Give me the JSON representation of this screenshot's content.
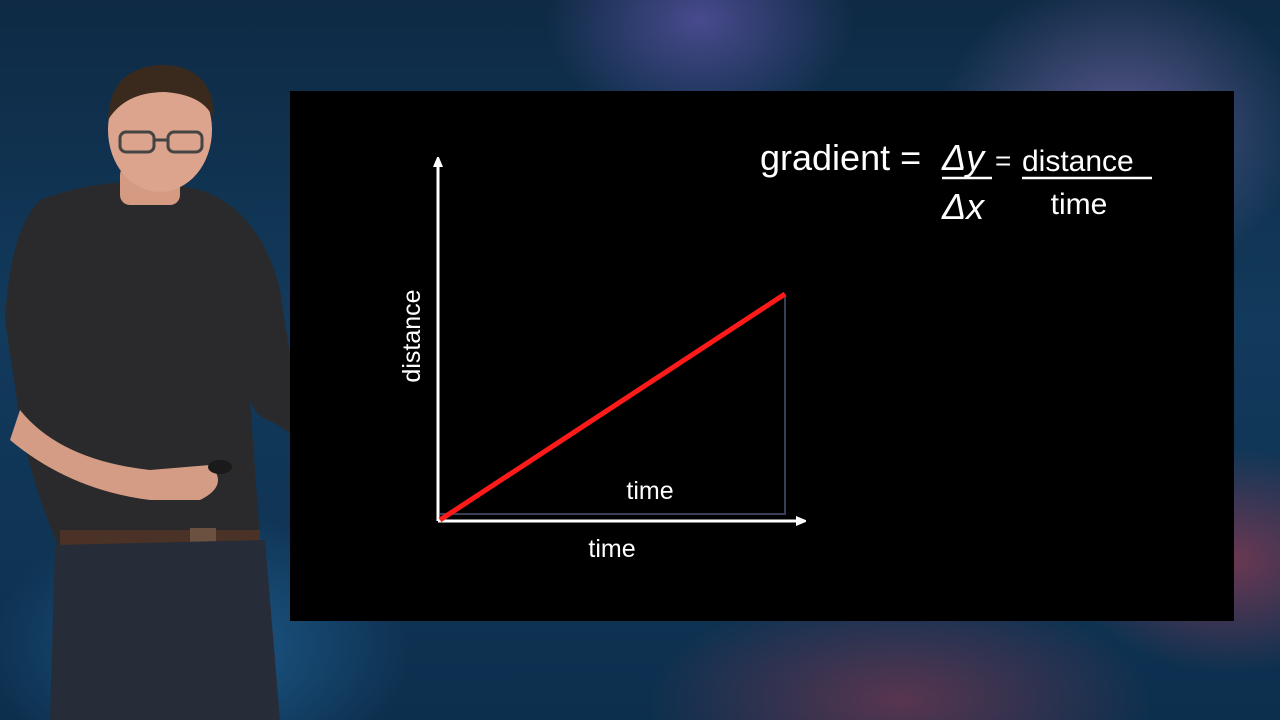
{
  "slide": {
    "formula": {
      "lhs": "gradient =",
      "dy_label": "Δy",
      "equals": "=",
      "numerator": "distance",
      "dx_label": "Δx",
      "denominator": "time"
    },
    "axes": {
      "x_label": "time",
      "y_label": "distance",
      "triangle_base_label": "time"
    },
    "colors": {
      "line": "#ff1a1a",
      "axes": "#ffffff",
      "triangle": "#3a3f58"
    }
  }
}
